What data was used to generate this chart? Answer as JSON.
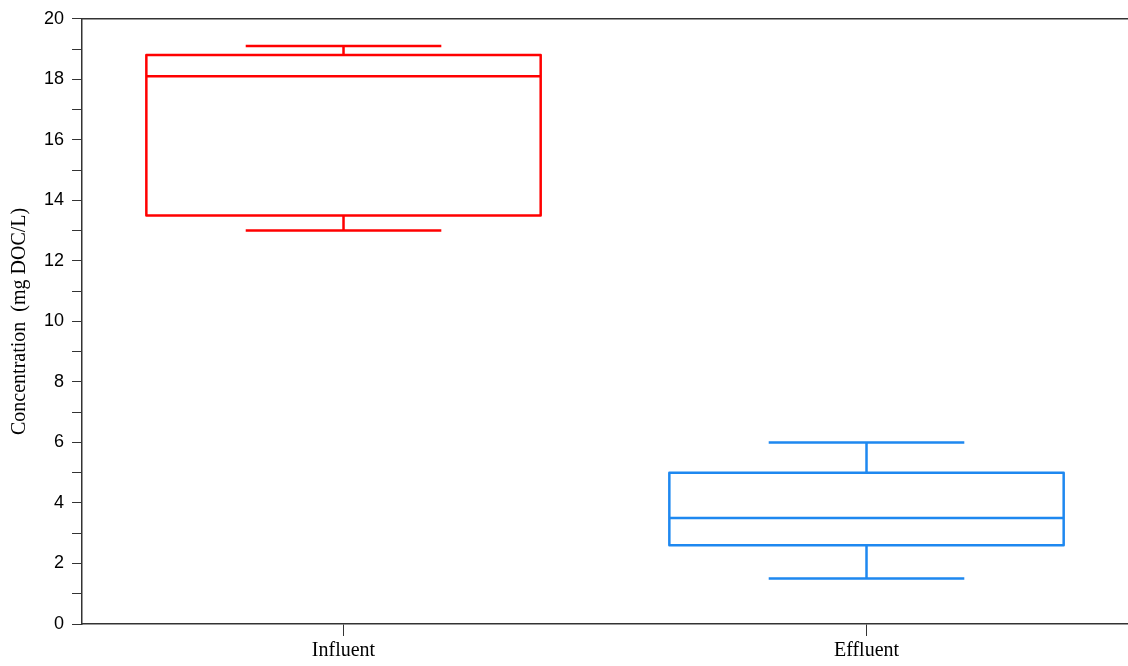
{
  "chart_data": {
    "type": "box",
    "ylabel": "Concentration  (mg DOC/L)",
    "categories": [
      "Influent",
      "Effluent"
    ],
    "colors": [
      "#ff0000",
      "#1e88f0"
    ],
    "boxes": [
      {
        "low": 13.0,
        "q1": 13.5,
        "median": 18.1,
        "q3": 18.8,
        "high": 19.1
      },
      {
        "low": 1.5,
        "q1": 2.6,
        "median": 3.5,
        "q3": 5.0,
        "high": 6.0
      }
    ],
    "ylim": [
      0,
      20
    ],
    "yticks": [
      0,
      {
        "value": 1,
        "label": null
      },
      2,
      {
        "value": 3,
        "label": null
      },
      4,
      {
        "value": 5,
        "label": null
      },
      6,
      {
        "value": 7,
        "label": null
      },
      8,
      {
        "value": 9,
        "label": null
      },
      10,
      {
        "value": 11,
        "label": null
      },
      12,
      {
        "value": 13,
        "label": null
      },
      14,
      {
        "value": 15,
        "label": null
      },
      16,
      {
        "value": 17,
        "label": null
      },
      18,
      {
        "value": 19,
        "label": null
      },
      20
    ]
  }
}
